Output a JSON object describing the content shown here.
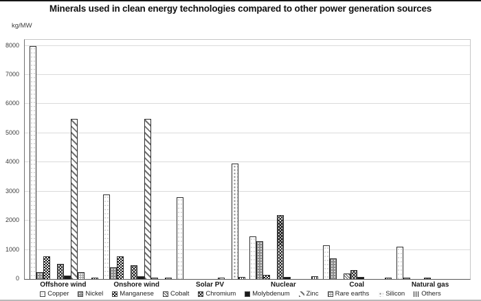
{
  "title": "Minerals used in clean energy technologies compared to other power generation sources",
  "chart_data": {
    "type": "bar",
    "title": "Minerals used in clean energy technologies compared to other power generation sources",
    "ylabel": "kg/MW",
    "xlabel": "",
    "ylim": [
      0,
      8000
    ],
    "ytick_interval": 1000,
    "grid": true,
    "legend_position": "bottom",
    "categories": [
      "Offshore wind",
      "Onshore wind",
      "Solar PV",
      "Nuclear",
      "Coal",
      "Natural gas"
    ],
    "series": [
      {
        "name": "Copper",
        "values": [
          8000,
          2900,
          2800,
          1470,
          1150,
          1100
        ]
      },
      {
        "name": "Nickel",
        "values": [
          240,
          400,
          0,
          1300,
          720,
          16
        ]
      },
      {
        "name": "Manganese",
        "values": [
          790,
          780,
          0,
          150,
          0,
          0
        ]
      },
      {
        "name": "Cobalt",
        "values": [
          0,
          0,
          0,
          0,
          200,
          0
        ]
      },
      {
        "name": "Chromium",
        "values": [
          525,
          470,
          0,
          2190,
          310,
          48
        ]
      },
      {
        "name": "Molybdenum",
        "values": [
          110,
          100,
          0,
          70,
          66,
          0
        ]
      },
      {
        "name": "Zinc",
        "values": [
          5500,
          5500,
          30,
          0,
          0,
          0
        ]
      },
      {
        "name": "Rare earths",
        "values": [
          240,
          14,
          0,
          0,
          0,
          0
        ]
      },
      {
        "name": "Silicon",
        "values": [
          0,
          0,
          3950,
          0,
          0,
          0
        ]
      },
      {
        "name": "Others",
        "values": [
          30,
          20,
          80,
          100,
          30,
          0
        ]
      }
    ]
  },
  "colors": {
    "grid": "#dadada",
    "axis": "#565656",
    "text": "#1a1a1a",
    "bar_outline": "#2e2e2e"
  }
}
